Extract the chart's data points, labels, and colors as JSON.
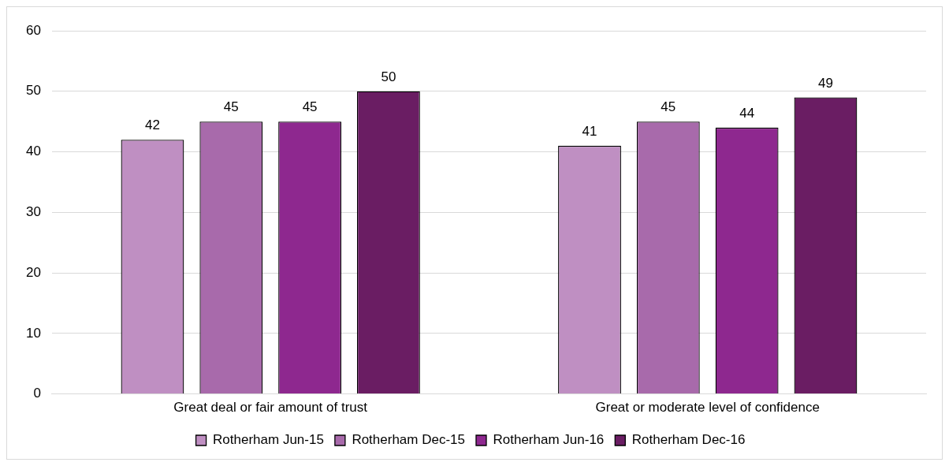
{
  "chart_data": {
    "type": "bar",
    "categories": [
      "Great deal or fair amount of trust",
      "Great or moderate level of confidence"
    ],
    "series": [
      {
        "name": "Rotherham Jun-15",
        "color": "#bf8fc2",
        "values": [
          42,
          41
        ]
      },
      {
        "name": "Rotherham Dec-15",
        "color": "#a86aab",
        "values": [
          45,
          45
        ]
      },
      {
        "name": "Rotherham Jun-16",
        "color": "#8e288f",
        "values": [
          45,
          44
        ]
      },
      {
        "name": "Rotherham Dec-16",
        "color": "#6a1d63",
        "values": [
          50,
          49
        ]
      }
    ],
    "ylim": [
      0,
      60
    ],
    "yticks": [
      0,
      10,
      20,
      30,
      40,
      50,
      60
    ],
    "grid": "y",
    "legend": "bottom",
    "data_labels": true
  }
}
